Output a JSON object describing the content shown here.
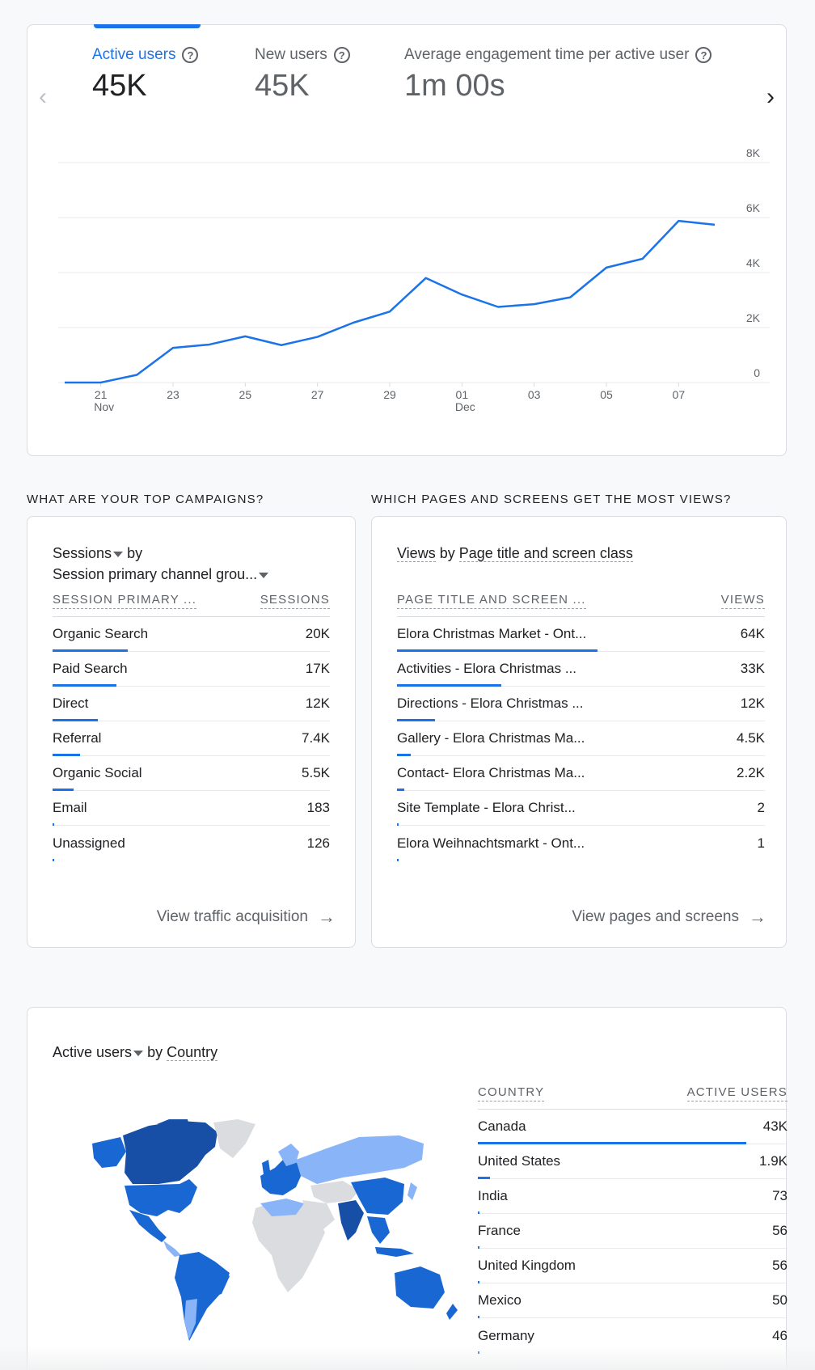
{
  "overview": {
    "metrics": [
      {
        "label": "Active users",
        "value": "45K"
      },
      {
        "label": "New users",
        "value": "45K"
      },
      {
        "label": "Average engagement time per active user",
        "value": "1m 00s"
      }
    ],
    "help_glyph": "?"
  },
  "chart_data": {
    "type": "line",
    "title": "Active users",
    "x": [
      "20 Nov",
      "21 Nov",
      "22 Nov",
      "23 Nov",
      "24 Nov",
      "25 Nov",
      "26 Nov",
      "27 Nov",
      "28 Nov",
      "29 Nov",
      "30 Nov",
      "01 Dec",
      "02 Dec",
      "03 Dec",
      "04 Dec",
      "05 Dec",
      "06 Dec",
      "07 Dec",
      "08 Dec"
    ],
    "series": [
      {
        "name": "Active users",
        "values": [
          0,
          0,
          280,
          1260,
          1380,
          1680,
          1360,
          1660,
          2180,
          2580,
          3800,
          3200,
          2750,
          2850,
          3100,
          4180,
          4500,
          5880,
          5740
        ]
      }
    ],
    "ylim": [
      0,
      8000
    ],
    "yticks": [
      "0",
      "2K",
      "4K",
      "6K",
      "8K"
    ],
    "xticks": [
      {
        "day": "21",
        "month": "Nov",
        "idx": 1
      },
      {
        "day": "23",
        "month": "",
        "idx": 3
      },
      {
        "day": "25",
        "month": "",
        "idx": 5
      },
      {
        "day": "27",
        "month": "",
        "idx": 7
      },
      {
        "day": "29",
        "month": "",
        "idx": 9
      },
      {
        "day": "01",
        "month": "Dec",
        "idx": 11
      },
      {
        "day": "03",
        "month": "",
        "idx": 13
      },
      {
        "day": "05",
        "month": "",
        "idx": 15
      },
      {
        "day": "07",
        "month": "",
        "idx": 17
      }
    ],
    "line_color": "#1a73e8"
  },
  "campaigns": {
    "section_title": "WHAT ARE YOUR TOP CAMPAIGNS?",
    "metric": "Sessions",
    "by": "by",
    "dimension": "Session primary channel grou...",
    "col1": "SESSION PRIMARY ...",
    "col2": "SESSIONS",
    "rows": [
      {
        "name": "Organic Search",
        "value": "20K",
        "share": 1.0
      },
      {
        "name": "Paid Search",
        "value": "17K",
        "share": 0.85
      },
      {
        "name": "Direct",
        "value": "12K",
        "share": 0.6
      },
      {
        "name": "Referral",
        "value": "7.4K",
        "share": 0.37
      },
      {
        "name": "Organic Social",
        "value": "5.5K",
        "share": 0.275
      },
      {
        "name": "Email",
        "value": "183",
        "share": 0.01
      },
      {
        "name": "Unassigned",
        "value": "126",
        "share": 0.006
      }
    ],
    "footer": "View traffic acquisition"
  },
  "pages": {
    "section_title": "WHICH PAGES AND SCREENS GET THE MOST VIEWS?",
    "metric": "Views",
    "by": "by",
    "dimension": "Page title and screen class",
    "col1": "PAGE TITLE AND SCREEN ...",
    "col2": "VIEWS",
    "rows": [
      {
        "name": "Elora Christmas Market - Ont...",
        "value": "64K",
        "share": 1.0
      },
      {
        "name": "Activities - Elora Christmas ...",
        "value": "33K",
        "share": 0.52
      },
      {
        "name": "Directions - Elora Christmas ...",
        "value": "12K",
        "share": 0.19
      },
      {
        "name": "Gallery - Elora Christmas Ma...",
        "value": "4.5K",
        "share": 0.07
      },
      {
        "name": "Contact- Elora Christmas Ma...",
        "value": "2.2K",
        "share": 0.035
      },
      {
        "name": "Site Template - Elora Christ...",
        "value": "2",
        "share": 0.0
      },
      {
        "name": "Elora Weihnachtsmarkt - Ont...",
        "value": "1",
        "share": 0.0
      }
    ],
    "footer": "View pages and screens"
  },
  "country": {
    "metric": "Active users",
    "by": "by",
    "dimension": "Country",
    "col1": "COUNTRY",
    "col2": "ACTIVE USERS",
    "rows": [
      {
        "name": "Canada",
        "value": "43K",
        "share": 1.0
      },
      {
        "name": "United States",
        "value": "1.9K",
        "share": 0.044
      },
      {
        "name": "India",
        "value": "73",
        "share": 0.002
      },
      {
        "name": "France",
        "value": "56",
        "share": 0.001
      },
      {
        "name": "United Kingdom",
        "value": "56",
        "share": 0.001
      },
      {
        "name": "Mexico",
        "value": "50",
        "share": 0.001
      },
      {
        "name": "Germany",
        "value": "46",
        "share": 0.001
      }
    ]
  },
  "colors": {
    "accent": "#1a73e8",
    "map_dark": "#174ea6",
    "map_mid": "#1967d2",
    "map_light": "#8ab4f8",
    "map_none": "#dadce0"
  }
}
